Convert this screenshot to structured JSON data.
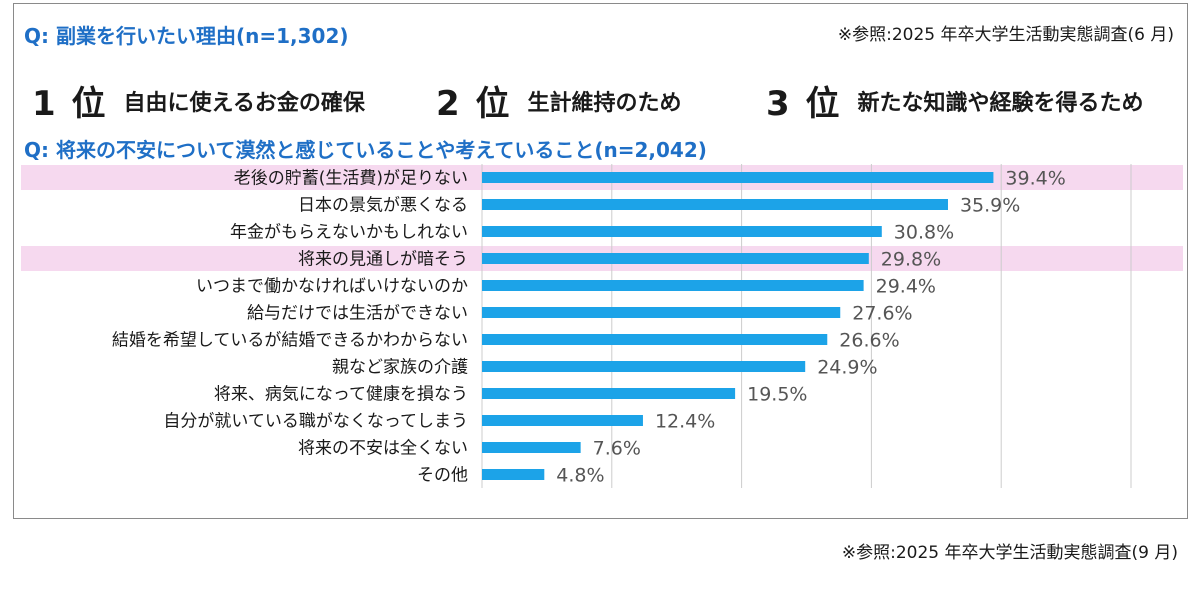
{
  "question1": "Q:  副業を行いたい理由(n=1,302)",
  "reference_top": "※参照:2025 年卒大学生活動実態調査(6 月)",
  "ranking": [
    {
      "rank": "1 位",
      "reason": "自由に使えるお金の確保"
    },
    {
      "rank": "2 位",
      "reason": "生計維持のため"
    },
    {
      "rank": "3 位",
      "reason": "新たな知識や経験を得るため"
    }
  ],
  "question2": "Q:  将来の不安について漠然と感じていることや考えていること(n=2,042)",
  "reference_bottom": "※参照:2025 年卒大学生活動実態調査(9 月)",
  "colors": {
    "bar": "#1ca3e8",
    "highlight": "#f6d9ef",
    "accent_text": "#1f6fc6",
    "grid": "#cccccc"
  },
  "chart_data": {
    "type": "bar",
    "orientation": "horizontal",
    "categories": [
      "老後の貯蓄(生活費)が足りない",
      "日本の景気が悪くなる",
      "年金がもらえないかもしれない",
      "将来の見通しが暗そう",
      "いつまで働かなければいけないのか",
      "給与だけでは生活ができない",
      "結婚を希望しているが結婚できるかわからない",
      "親など家族の介護",
      "将来、病気になって健康を損なう",
      "自分が就いている職がなくなってしまう",
      "将来の不安は全くない",
      "その他"
    ],
    "values": [
      39.4,
      35.9,
      30.8,
      29.8,
      29.4,
      27.6,
      26.6,
      24.9,
      19.5,
      12.4,
      7.6,
      4.8
    ],
    "value_labels": [
      "39.4%",
      "35.9%",
      "30.8%",
      "29.8%",
      "29.4%",
      "27.6%",
      "26.6%",
      "24.9%",
      "19.5%",
      "12.4%",
      "7.6%",
      "4.8%"
    ],
    "highlighted": [
      0,
      3
    ],
    "xlim": [
      0,
      50
    ],
    "grid": true
  }
}
